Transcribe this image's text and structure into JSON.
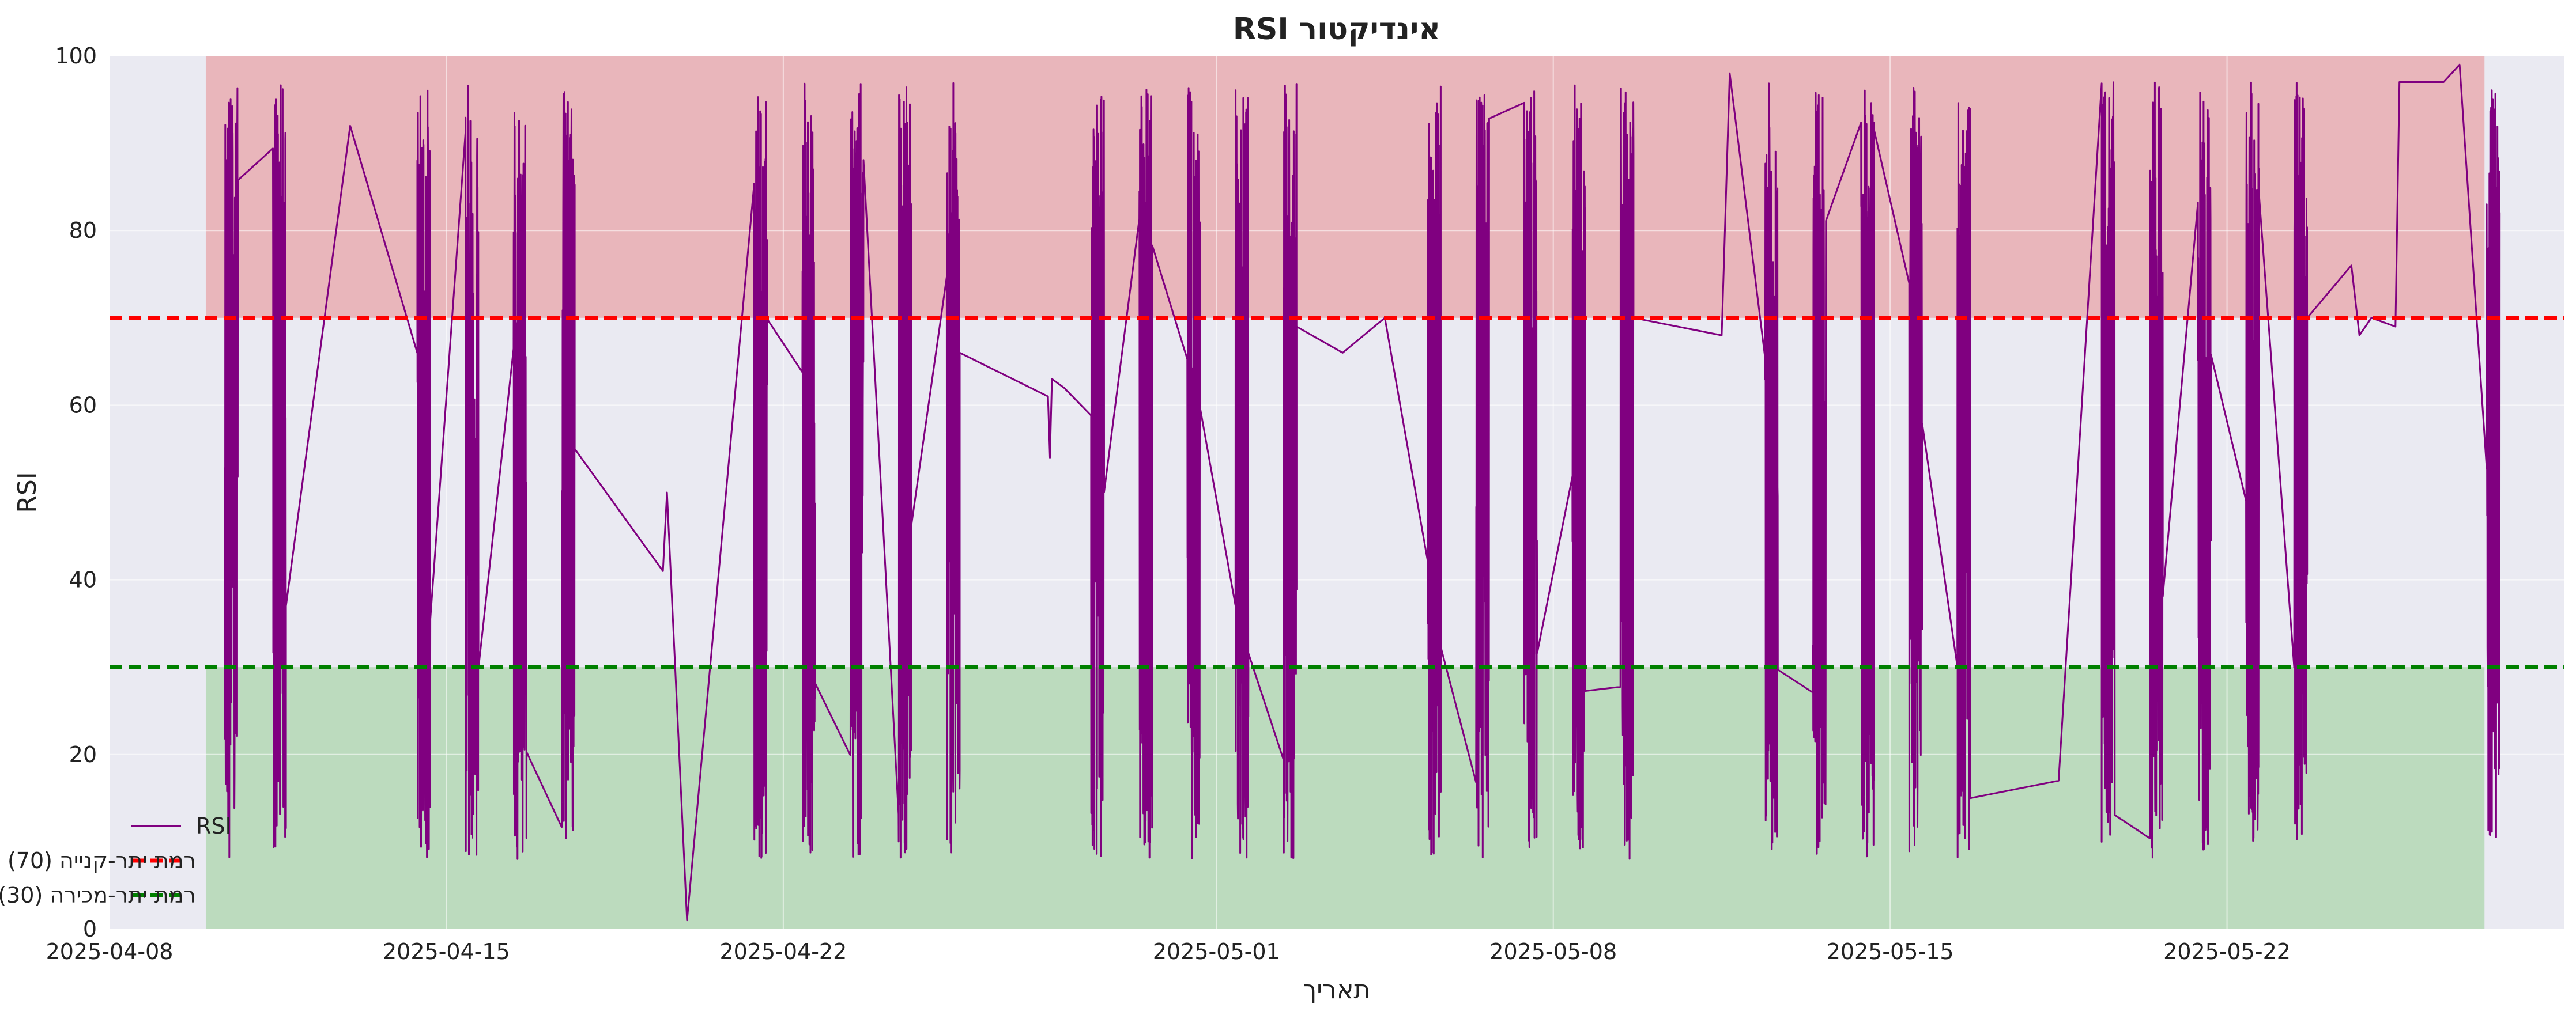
{
  "chart_data": {
    "type": "line",
    "title": "אינדיקטור RSI",
    "xlabel": "תאריך",
    "ylabel": "RSI",
    "ylim": [
      0,
      100
    ],
    "xlim": [
      "2025-04-08",
      "2025-05-29"
    ],
    "x_ticks": [
      "2025-04-08",
      "2025-04-15",
      "2025-04-22",
      "2025-05-01",
      "2025-05-08",
      "2025-05-15",
      "2025-05-22"
    ],
    "y_ticks": [
      0,
      20,
      40,
      60,
      80,
      100
    ],
    "grid": true,
    "legend_position": "lower-left",
    "bands": [
      {
        "name": "overbought-zone",
        "from": 70,
        "to": 100,
        "start": "2025-04-10",
        "end": "2025-05-27",
        "color": "#e8a0a4"
      },
      {
        "name": "oversold-zone",
        "from": 0,
        "to": 30,
        "start": "2025-04-10",
        "end": "2025-05-27",
        "color": "#a8d4a8"
      }
    ],
    "reference_lines": [
      {
        "name": "רמת יתר-קנייה (70)",
        "value": 70,
        "color": "#ff0000",
        "style": "dashed"
      },
      {
        "name": "רמת יתר-מכירה (30)",
        "value": 30,
        "color": "#008000",
        "style": "dashed"
      }
    ],
    "series": [
      {
        "name": "RSI",
        "color": "#800080",
        "session_hours": [
          9.5,
          16.0
        ],
        "sessions": [
          {
            "start": "2025-04-10",
            "end": "2025-04-11"
          },
          {
            "start": "2025-04-14",
            "end": "2025-04-17"
          },
          {
            "start": "2025-04-21",
            "end": "2025-04-25"
          },
          {
            "start": "2025-04-28",
            "end": "2025-05-02"
          },
          {
            "start": "2025-05-05",
            "end": "2025-05-09"
          },
          {
            "start": "2025-05-12",
            "end": "2025-05-16"
          },
          {
            "start": "2025-05-19",
            "end": "2025-05-23"
          },
          {
            "start": "2025-05-27",
            "end": "2025-05-27"
          }
        ],
        "connectors": [
          {
            "x": "2025-04-11T16:00",
            "y": 37
          },
          {
            "x": "2025-04-13T00:00",
            "y": 92
          },
          {
            "x": "2025-04-14T09:30",
            "y": 88
          },
          {
            "x": "2025-04-17T16:00",
            "y": 55
          },
          {
            "x": "2025-04-19T12:00",
            "y": 41
          },
          {
            "x": "2025-04-19T14:00",
            "y": 50
          },
          {
            "x": "2025-04-20T00:00",
            "y": 1
          },
          {
            "x": "2025-04-21T09:30",
            "y": 60
          },
          {
            "x": "2025-04-25T16:00",
            "y": 66
          },
          {
            "x": "2025-04-27T12:00",
            "y": 61
          },
          {
            "x": "2025-04-27T13:00",
            "y": 54
          },
          {
            "x": "2025-04-27T14:00",
            "y": 63
          },
          {
            "x": "2025-04-27T20:00",
            "y": 62
          },
          {
            "x": "2025-04-28T09:30",
            "y": 40
          },
          {
            "x": "2025-05-02T16:00",
            "y": 69
          },
          {
            "x": "2025-05-03T15:00",
            "y": 66
          },
          {
            "x": "2025-05-04T12:00",
            "y": 70
          },
          {
            "x": "2025-05-05T09:30",
            "y": 35
          },
          {
            "x": "2025-05-09T16:00",
            "y": 70
          },
          {
            "x": "2025-05-11T12:00",
            "y": 68
          },
          {
            "x": "2025-05-11T16:00",
            "y": 98
          },
          {
            "x": "2025-05-12T09:30",
            "y": 70
          },
          {
            "x": "2025-05-16T16:00",
            "y": 15
          },
          {
            "x": "2025-05-18T12:00",
            "y": 17
          },
          {
            "x": "2025-05-19T09:30",
            "y": 10
          },
          {
            "x": "2025-05-23T16:00",
            "y": 70
          },
          {
            "x": "2025-05-24T14:00",
            "y": 76
          },
          {
            "x": "2025-05-24T18:00",
            "y": 68
          },
          {
            "x": "2025-05-25T00:00",
            "y": 70
          },
          {
            "x": "2025-05-25T12:00",
            "y": 69
          },
          {
            "x": "2025-05-25T14:00",
            "y": 97
          },
          {
            "x": "2025-05-26T12:00",
            "y": 97
          },
          {
            "x": "2025-05-26T20:00",
            "y": 99
          },
          {
            "x": "2025-05-27T09:30",
            "y": 83
          }
        ]
      }
    ],
    "legend": [
      "RSI",
      "רמת יתר-קנייה (70)",
      "רמת יתר-מכירה (30)"
    ]
  }
}
